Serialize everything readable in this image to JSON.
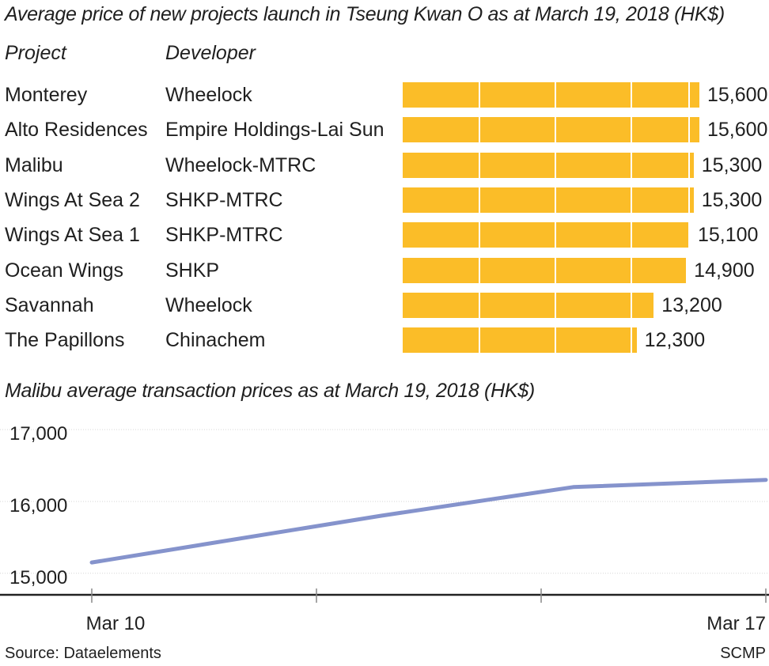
{
  "bar_chart": {
    "title": "Average price of new projects launch in Tseung Kwan O as at March 19, 2018 (HK$)",
    "col_project": "Project",
    "col_developer": "Developer"
  },
  "line_chart": {
    "title": "Malibu average transaction prices as at March 19, 2018 (HK$)"
  },
  "footer": {
    "source": "Source: Dataelements",
    "credit": "SCMP"
  },
  "colors": {
    "bar": "#fbbd28",
    "line": "#8593cc",
    "axis": "#222222"
  },
  "chart_data": [
    {
      "type": "bar",
      "orientation": "horizontal",
      "title": "Average price of new projects launch in Tseung Kwan O as at March 19, 2018 (HK$)",
      "categories": [
        "Monterey",
        "Alto Residences",
        "Malibu",
        "Wings At Sea 2",
        "Wings At Sea 1",
        "Ocean Wings",
        "Savannah",
        "The Papillons"
      ],
      "developers": [
        "Wheelock",
        "Empire Holdings-Lai Sun",
        "Wheelock-MTRC",
        "SHKP-MTRC",
        "SHKP-MTRC",
        "SHKP",
        "Wheelock",
        "Chinachem"
      ],
      "values": [
        15600,
        15600,
        15300,
        15300,
        15100,
        14900,
        13200,
        12300
      ],
      "value_labels": [
        "15,600",
        "15,600",
        "15,300",
        "15,300",
        "15,100",
        "14,900",
        "13,200",
        "12,300"
      ],
      "xlim": [
        0,
        15600
      ],
      "grid": true
    },
    {
      "type": "line",
      "title": "Malibu average transaction prices as at March 19, 2018 (HK$)",
      "x": [
        "2018-03-10",
        "2018-03-13",
        "2018-03-15",
        "2018-03-17"
      ],
      "y": [
        15150,
        15800,
        16200,
        16300
      ],
      "ylim": [
        14700,
        17200
      ],
      "yticks": [
        15000,
        16000,
        17000
      ],
      "ytick_labels": [
        "15,000",
        "16,000",
        "17,000"
      ],
      "xtick_labels": [
        "Mar 10",
        "",
        "",
        "Mar 17"
      ],
      "grid": true
    }
  ]
}
